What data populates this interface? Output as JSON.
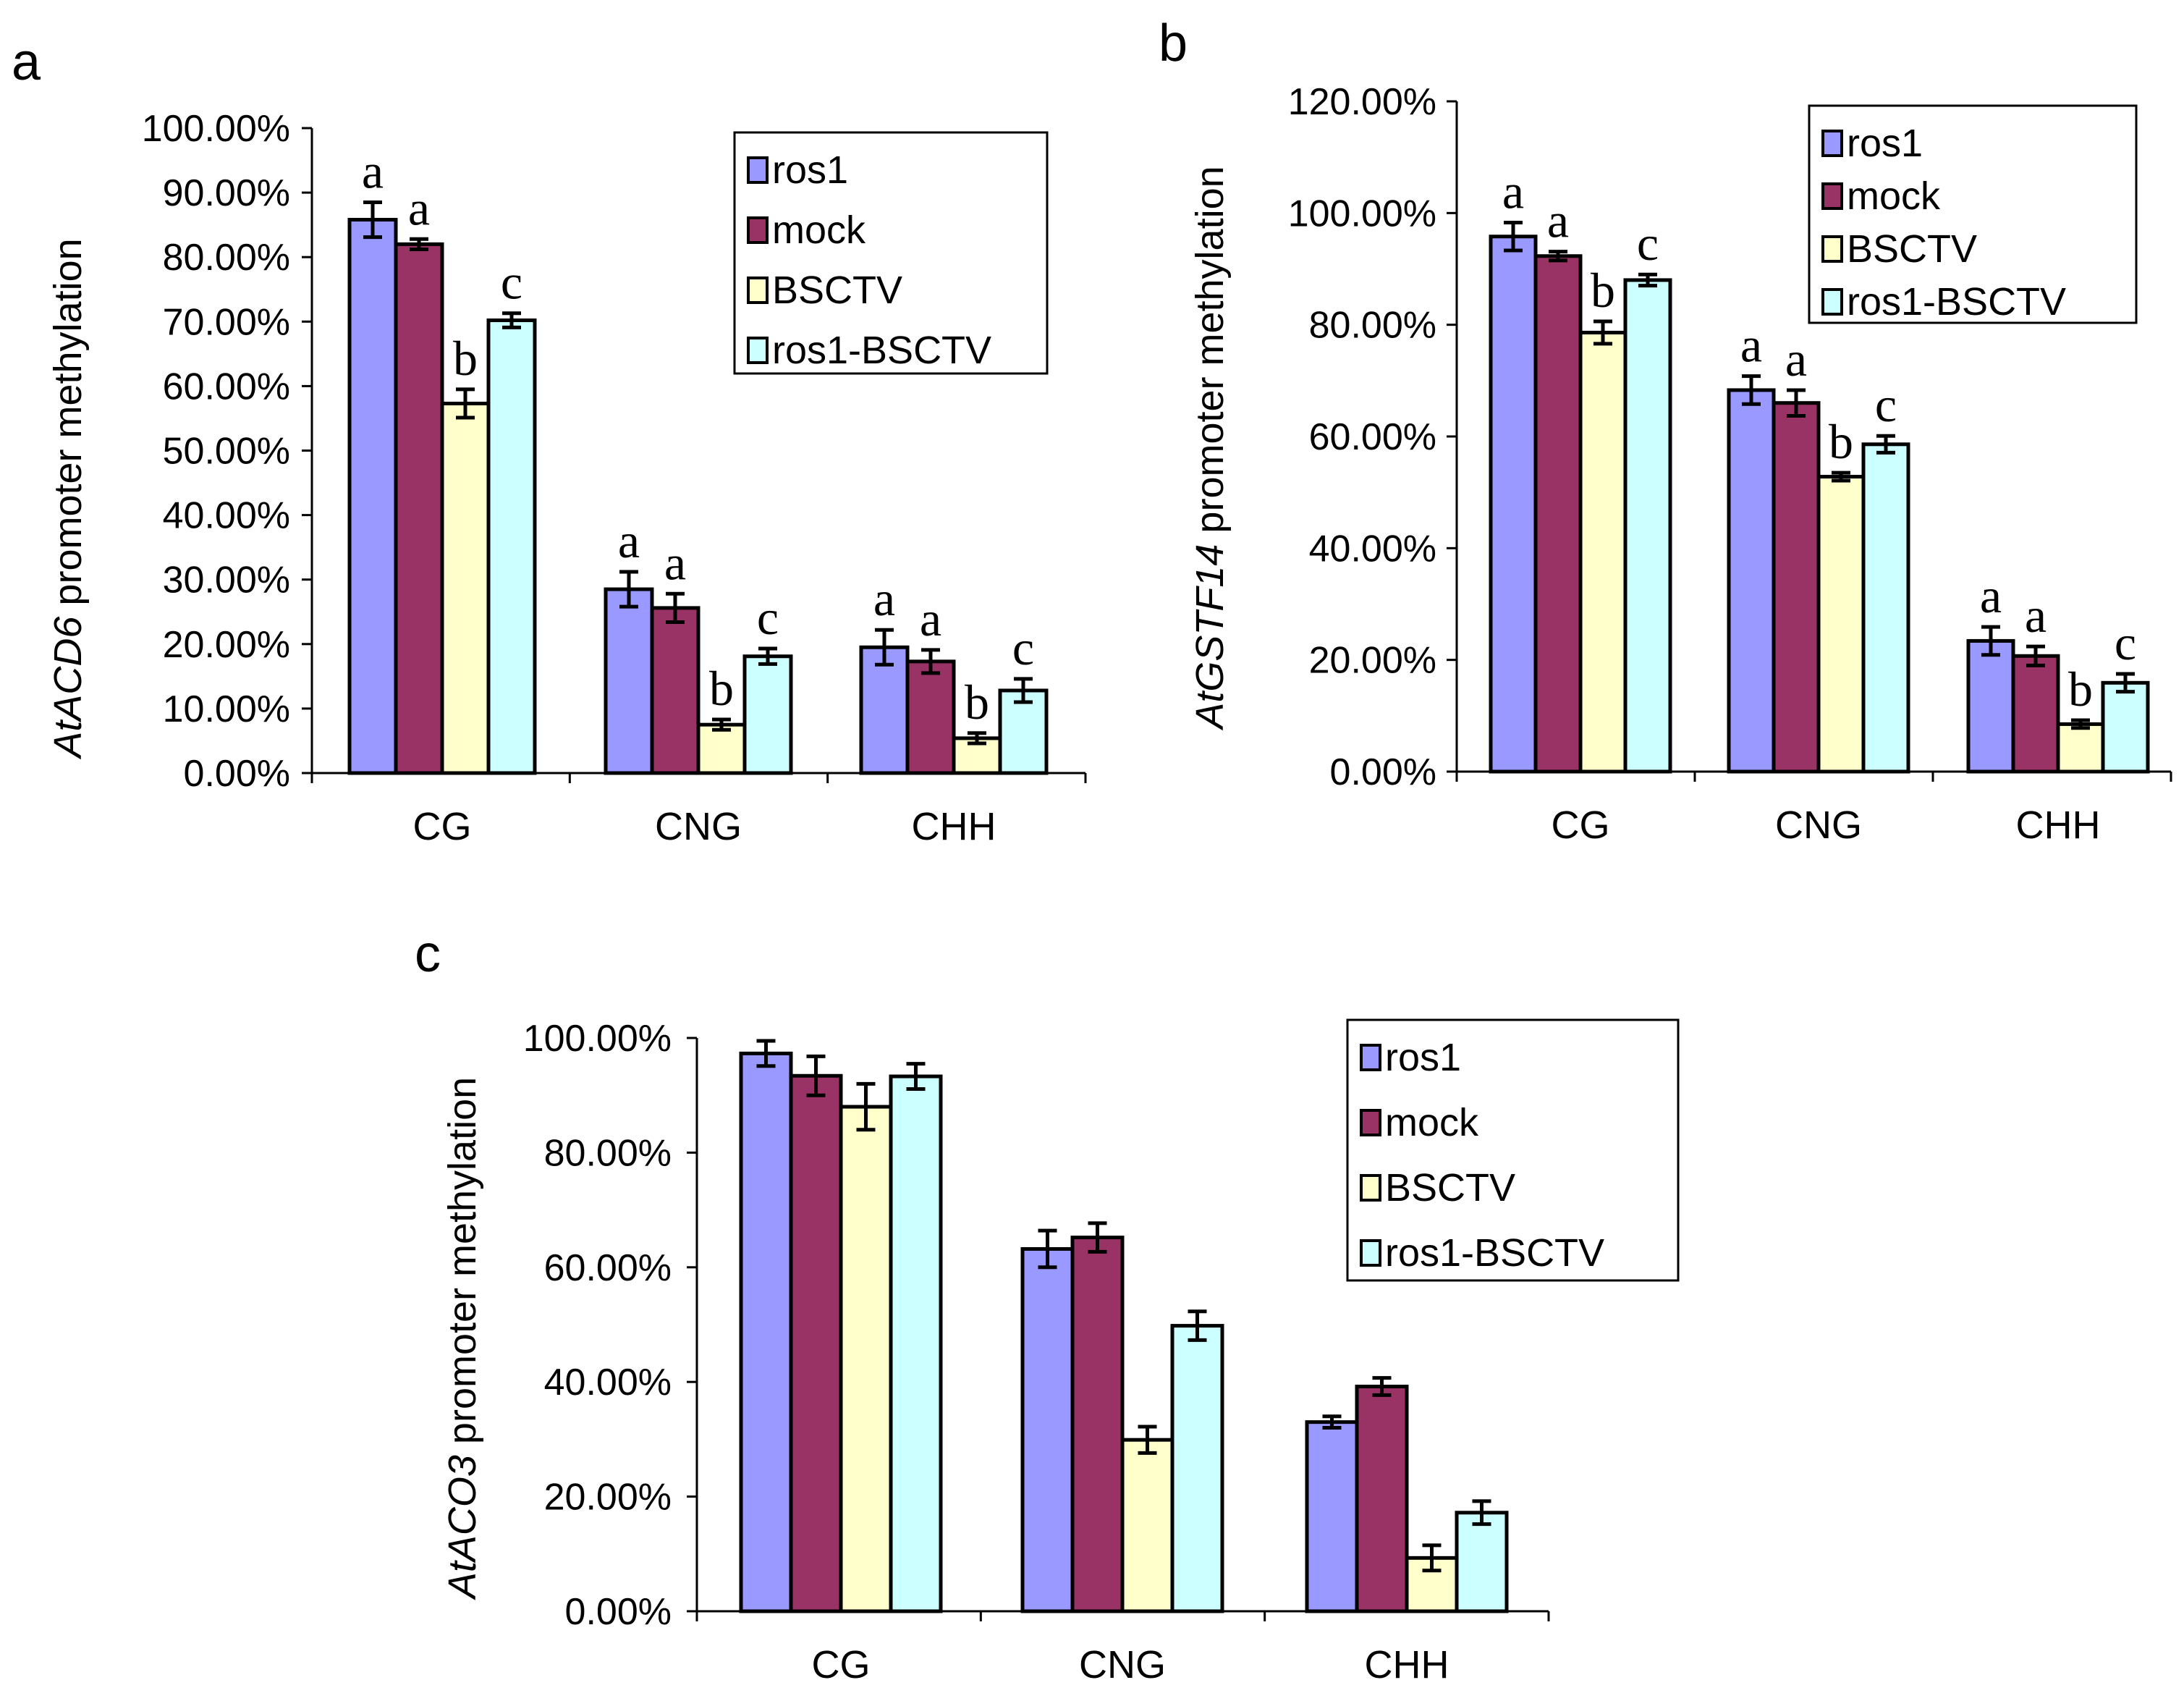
{
  "figure": {
    "colors": {
      "ros1": "#9999ff",
      "mock": "#993366",
      "BSCTV": "#ffffcc",
      "ros1-BSCTV": "#ccffff"
    }
  },
  "chart_data": [
    {
      "panel": "a",
      "type": "bar",
      "ylabel_gene": "AtACD6",
      "ylabel_rest": " promoter methylation",
      "categories": [
        "CG",
        "CNG",
        "CHH"
      ],
      "ylim": [
        0,
        100
      ],
      "ytick_step": 10,
      "ytick_labels": [
        "0.00%",
        "10.00%",
        "20.00%",
        "30.00%",
        "40.00%",
        "50.00%",
        "60.00%",
        "70.00%",
        "80.00%",
        "90.00%",
        "100.00%"
      ],
      "legend": [
        "ros1",
        "mock",
        "BSCTV",
        "ros1-BSCTV"
      ],
      "legend_position": "top-right",
      "series": [
        {
          "name": "ros1",
          "values": [
            85.8,
            28.5,
            19.5
          ],
          "errors": [
            2.7,
            2.7,
            2.7
          ],
          "labels": [
            "a",
            "a",
            "a"
          ]
        },
        {
          "name": "mock",
          "values": [
            82.0,
            25.6,
            17.3
          ],
          "errors": [
            0.8,
            2.2,
            1.8
          ],
          "labels": [
            "a",
            "a",
            "a"
          ]
        },
        {
          "name": "BSCTV",
          "values": [
            57.3,
            7.5,
            5.4
          ],
          "errors": [
            2.2,
            0.8,
            0.8
          ],
          "labels": [
            "b",
            "b",
            "b"
          ]
        },
        {
          "name": "ros1-BSCTV",
          "values": [
            70.2,
            18.1,
            12.8
          ],
          "errors": [
            1.1,
            1.2,
            1.8
          ],
          "labels": [
            "c",
            "c",
            "c"
          ]
        }
      ]
    },
    {
      "panel": "b",
      "type": "bar",
      "ylabel_gene": "AtGSTF14",
      "ylabel_rest": " promoter methylation",
      "categories": [
        "CG",
        "CNG",
        "CHH"
      ],
      "ylim": [
        0,
        120
      ],
      "ytick_step": 20,
      "ytick_labels": [
        "0.00%",
        "20.00%",
        "40.00%",
        "60.00%",
        "80.00%",
        "100.00%",
        "120.00%"
      ],
      "legend": [
        "ros1",
        "mock",
        "BSCTV",
        "ros1-BSCTV"
      ],
      "legend_position": "top-right",
      "series": [
        {
          "name": "ros1",
          "values": [
            95.8,
            68.3,
            23.4
          ],
          "errors": [
            2.5,
            2.5,
            2.5
          ],
          "labels": [
            "a",
            "a",
            "a"
          ]
        },
        {
          "name": "mock",
          "values": [
            92.3,
            66.0,
            20.7
          ],
          "errors": [
            0.8,
            2.3,
            1.7
          ],
          "labels": [
            "a",
            "a",
            "a"
          ]
        },
        {
          "name": "BSCTV",
          "values": [
            78.6,
            52.8,
            8.5
          ],
          "errors": [
            2.0,
            0.7,
            0.7
          ],
          "labels": [
            "b",
            "b",
            "b"
          ]
        },
        {
          "name": "ros1-BSCTV",
          "values": [
            88.0,
            58.6,
            15.9
          ],
          "errors": [
            1.0,
            1.5,
            1.6
          ],
          "labels": [
            "c",
            "c",
            "c"
          ]
        }
      ]
    },
    {
      "panel": "c",
      "type": "bar",
      "ylabel_gene": "AtACO3",
      "ylabel_rest": " promoter methylation",
      "categories": [
        "CG",
        "CNG",
        "CHH"
      ],
      "ylim": [
        0,
        100
      ],
      "ytick_step": 20,
      "ytick_labels": [
        "0.00%",
        "20.00%",
        "40.00%",
        "60.00%",
        "80.00%",
        "100.00%"
      ],
      "legend": [
        "ros1",
        "mock",
        "BSCTV",
        "ros1-BSCTV"
      ],
      "legend_position": "top-right",
      "series": [
        {
          "name": "ros1",
          "values": [
            97.3,
            63.2,
            33.0
          ],
          "errors": [
            2.2,
            3.2,
            1.0
          ],
          "labels": []
        },
        {
          "name": "mock",
          "values": [
            93.4,
            65.2,
            39.2
          ],
          "errors": [
            3.4,
            2.5,
            1.5
          ],
          "labels": []
        },
        {
          "name": "BSCTV",
          "values": [
            88.0,
            29.9,
            9.3
          ],
          "errors": [
            4.0,
            2.3,
            2.2
          ],
          "labels": []
        },
        {
          "name": "ros1-BSCTV",
          "values": [
            93.3,
            49.8,
            17.2
          ],
          "errors": [
            2.2,
            2.5,
            2.0
          ],
          "labels": []
        }
      ]
    }
  ]
}
